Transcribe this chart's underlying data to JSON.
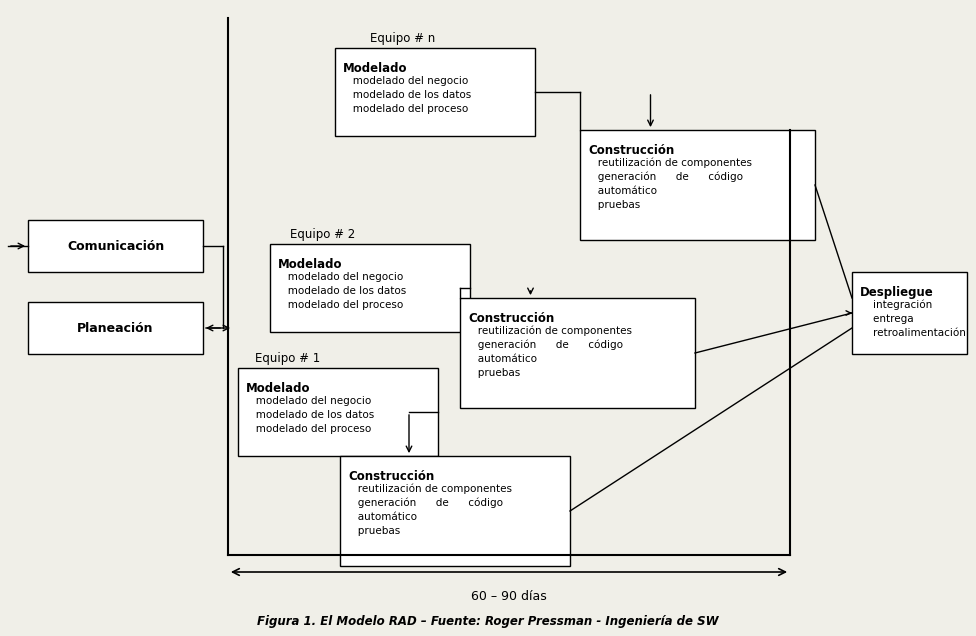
{
  "bg_color": "#f0efe8",
  "title": "Figura 1. El Modelo RAD – Fuente: Roger Pressman - Ingeniería de SW",
  "box_facecolor": "#ffffff",
  "box_edgecolor": "#000000",
  "text_color": "#000000",
  "days_label": "60 – 90 días",
  "comunicacion_label": "Comunicación",
  "planeacion_label": "Planeación",
  "despliegue_title": "Despliegue",
  "despliegue_lines": [
    "    integración",
    "    entrega",
    "    retroalimentación"
  ],
  "modelado_title": "Modelado",
  "modelado_lines": [
    "   modelado del negocio",
    "   modelado de los datos",
    "   modelado del proceso"
  ],
  "construccion_title": "Construcción",
  "construccion_lines_n": [
    "   reutilización de componentes",
    "   generación      de      código",
    "   automático",
    "   pruebas"
  ],
  "equipos": [
    "Equipo # n",
    "Equipo # 2",
    "Equipo # 1"
  ]
}
